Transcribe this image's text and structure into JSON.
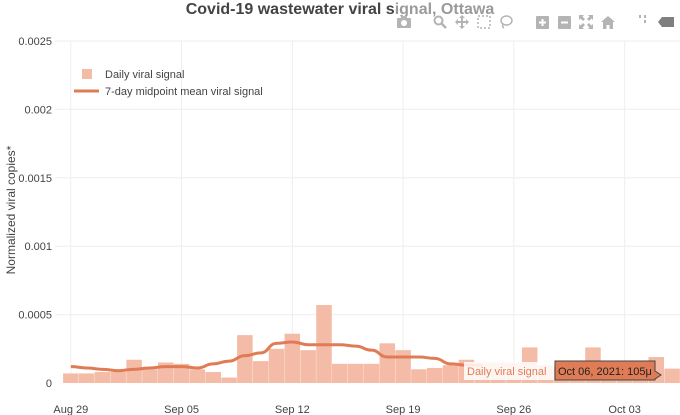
{
  "chart_data": {
    "type": "bar",
    "title_main": "Covid-19 wastewater viral s",
    "title_faded": "ignal, Ottawa",
    "xlabel": "",
    "ylabel": "Normalized viral copies*",
    "ylim": [
      0,
      0.0025
    ],
    "yticks": [
      "0",
      "0.0005",
      "0.001",
      "0.0015",
      "0.002",
      "0.0025"
    ],
    "xticks": [
      "Aug 29",
      "Sep 05",
      "Sep 12",
      "Sep 19",
      "Sep 26",
      "Oct 03"
    ],
    "grid": true,
    "legend_position": "top-left",
    "colors": {
      "bars": "#f4bba6",
      "line": "#e07c55"
    },
    "series": [
      {
        "name": "Daily viral signal",
        "type": "bar",
        "dates": [
          "2021-08-29",
          "2021-08-30",
          "2021-08-31",
          "2021-09-01",
          "2021-09-02",
          "2021-09-03",
          "2021-09-04",
          "2021-09-05",
          "2021-09-06",
          "2021-09-07",
          "2021-09-08",
          "2021-09-09",
          "2021-09-10",
          "2021-09-11",
          "2021-09-12",
          "2021-09-13",
          "2021-09-14",
          "2021-09-15",
          "2021-09-16",
          "2021-09-17",
          "2021-09-18",
          "2021-09-19",
          "2021-09-20",
          "2021-09-21",
          "2021-09-22",
          "2021-09-23",
          "2021-09-24",
          "2021-09-25",
          "2021-09-26",
          "2021-09-27",
          "2021-09-28",
          "2021-09-29",
          "2021-09-30",
          "2021-10-01",
          "2021-10-02",
          "2021-10-03",
          "2021-10-04",
          "2021-10-05",
          "2021-10-06"
        ],
        "values": [
          7e-05,
          7e-05,
          8e-05,
          8e-05,
          0.00017,
          0.0001,
          0.00015,
          0.00014,
          0.0001,
          8e-05,
          4e-05,
          0.00035,
          0.00016,
          0.00025,
          0.00036,
          0.00024,
          0.00057,
          0.00014,
          0.00014,
          0.00014,
          0.00029,
          0.00024,
          0.0001,
          0.00011,
          0.00013,
          0.00017,
          0.00015,
          0.00015,
          0.00015,
          0.00026,
          0.00013,
          0.00012,
          0.00012,
          0.00026,
          0.00012,
          0.00013,
          0.00013,
          0.00019,
          0.000105
        ]
      },
      {
        "name": "7-day midpoint mean viral signal",
        "type": "line",
        "dates": [
          "2021-08-29",
          "2021-08-30",
          "2021-08-31",
          "2021-09-01",
          "2021-09-02",
          "2021-09-03",
          "2021-09-04",
          "2021-09-05",
          "2021-09-06",
          "2021-09-07",
          "2021-09-08",
          "2021-09-09",
          "2021-09-10",
          "2021-09-11",
          "2021-09-12",
          "2021-09-13",
          "2021-09-14",
          "2021-09-15",
          "2021-09-16",
          "2021-09-17",
          "2021-09-18",
          "2021-09-19",
          "2021-09-20",
          "2021-09-21",
          "2021-09-22",
          "2021-09-23",
          "2021-09-24"
        ],
        "values": [
          0.00012,
          0.00011,
          0.0001,
          9e-05,
          0.0001,
          0.00011,
          0.00012,
          0.00012,
          0.00011,
          0.00014,
          0.00016,
          0.0002,
          0.00022,
          0.00029,
          0.0003,
          0.00028,
          0.00028,
          0.00028,
          0.00027,
          0.00024,
          0.00019,
          0.00019,
          0.00019,
          0.00018,
          0.00014,
          0.00013,
          0.00013
        ]
      }
    ],
    "hover": {
      "series_label": "Daily viral signal",
      "value_label": "Oct 06, 2021: 105μ"
    }
  },
  "modebar": {
    "icons": [
      "camera-icon",
      "zoom-icon",
      "pan-icon",
      "box-select-icon",
      "lasso-icon",
      "zoom-in-icon",
      "zoom-out-icon",
      "autoscale-icon",
      "reset-axes-icon",
      "spike-lines-icon",
      "hover-closest-icon",
      "hover-compare-icon",
      "plotly-logo-icon"
    ]
  }
}
